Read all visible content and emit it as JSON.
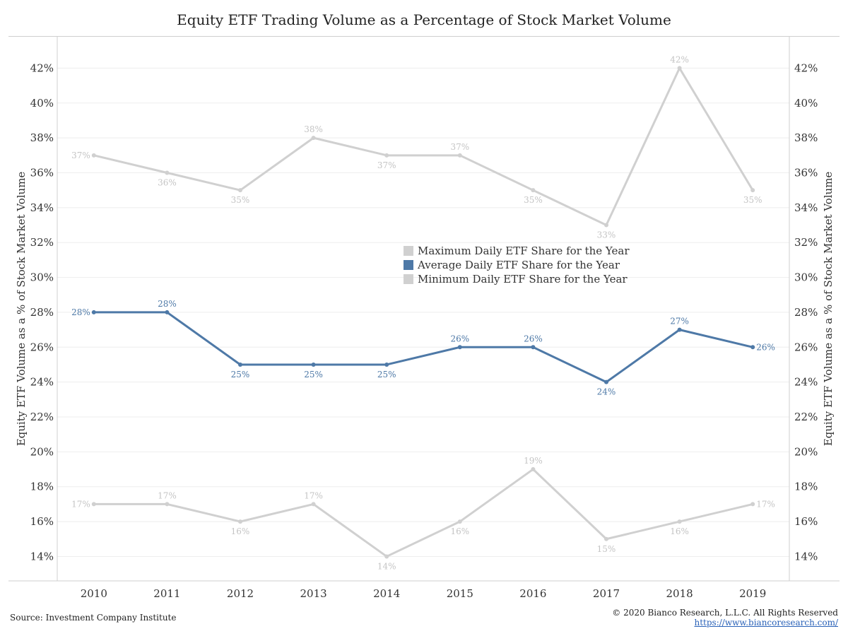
{
  "chart_data": {
    "type": "line",
    "title": "Equity ETF Trading Volume as a Percentage of Stock Market Volume",
    "ylabel": "Equity ETF Volume as a % of Stock Market Volume",
    "ylabel_right": "Equity ETF Volume as a % of Stock Market Volume",
    "ylim": [
      12.6,
      43.8
    ],
    "yticks": [
      14,
      16,
      18,
      20,
      22,
      24,
      26,
      28,
      30,
      32,
      34,
      36,
      38,
      40,
      42
    ],
    "ytick_labels": [
      "14%",
      "16%",
      "18%",
      "20%",
      "22%",
      "24%",
      "26%",
      "28%",
      "30%",
      "32%",
      "34%",
      "36%",
      "38%",
      "40%",
      "42%"
    ],
    "categories": [
      "2010",
      "2011",
      "2012",
      "2013",
      "2014",
      "2015",
      "2016",
      "2017",
      "2018",
      "2019"
    ],
    "grid": true,
    "legend_position": "center",
    "series": [
      {
        "name": "Maximum Daily ETF Share for the Year",
        "color": "#d0d0d0",
        "label_color": "#c4c4c4",
        "values": [
          37,
          36,
          35,
          38,
          37,
          37,
          35,
          33,
          42,
          35
        ],
        "labels": [
          "37%",
          "36%",
          "35%",
          "38%",
          "37%",
          "37%",
          "35%",
          "33%",
          "42%",
          "35%"
        ]
      },
      {
        "name": "Average Daily ETF Share for the Year",
        "color": "#4e79a7",
        "label_color": "#4e79a7",
        "values": [
          28,
          28,
          25,
          25,
          25,
          26,
          26,
          24,
          27,
          26
        ],
        "labels": [
          "28%",
          "28%",
          "25%",
          "25%",
          "25%",
          "26%",
          "26%",
          "24%",
          "27%",
          "26%"
        ]
      },
      {
        "name": "Minimum Daily ETF Share for the Year",
        "color": "#d0d0d0",
        "label_color": "#c4c4c4",
        "values": [
          17,
          17,
          16,
          17,
          14,
          16,
          19,
          15,
          16,
          17
        ],
        "labels": [
          "17%",
          "17%",
          "16%",
          "17%",
          "14%",
          "16%",
          "19%",
          "15%",
          "16%",
          "17%"
        ]
      }
    ]
  },
  "footer": {
    "source": "Source: Investment Company Institute",
    "copyright": "© 2020 Bianco Research, L.L.C. All Rights Reserved",
    "url": "https://www.biancoresearch.com/"
  }
}
